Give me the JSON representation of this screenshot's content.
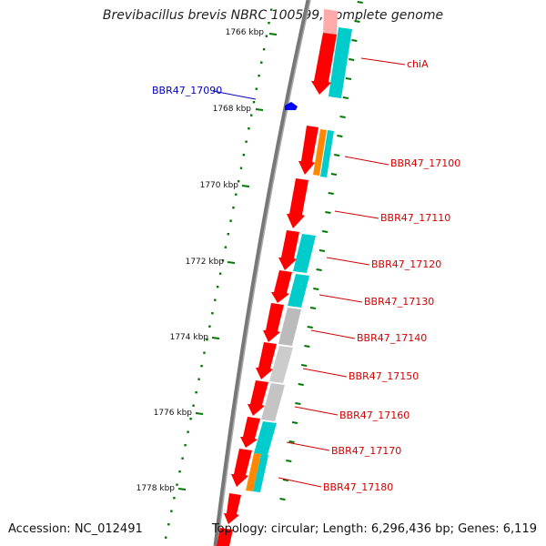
{
  "title": "Brevibacillus brevis NBRC 100599, complete genome",
  "accession": "Accession: NC_012491",
  "summary": "Topology: circular; Length: 6,296,436 bp; Genes: 6,119",
  "ticks": [
    "1766 kbp",
    "1768 kbp",
    "1770 kbp",
    "1772 kbp",
    "1774 kbp",
    "1776 kbp",
    "1778 kbp"
  ],
  "gene_labels": {
    "chiA": "chiA",
    "g17090": "BBR47_17090",
    "g17100": "BBR47_17100",
    "g17110": "BBR47_17110",
    "g17120": "BBR47_17120",
    "g17130": "BBR47_17130",
    "g17140": "BBR47_17140",
    "g17150": "BBR47_17150",
    "g17160": "BBR47_17160",
    "g17170": "BBR47_17170",
    "g17180": "BBR47_17180"
  },
  "colors": {
    "gene": "#ff0000",
    "gene_dark": "#b00000",
    "cds_cyan": "#00cccc",
    "cds_orange": "#ff8800",
    "cds_gray": "#bbbbbb",
    "tick_green": "#007700",
    "axis": "#777777",
    "label_red": "#d40000",
    "label_blue": "#0000c0"
  }
}
